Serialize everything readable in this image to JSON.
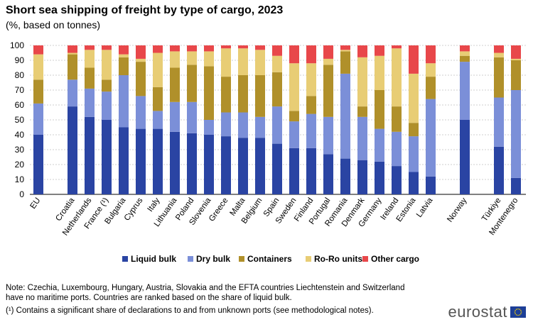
{
  "title": "Short sea shipping of freight by type of cargo, 2023",
  "subtitle": "(%, based on tonnes)",
  "chart_data": {
    "type": "bar",
    "stacked": true,
    "categories": [
      "EU",
      "Croatia",
      "Netherlands",
      "France (¹)",
      "Bulgaria",
      "Cyprus",
      "Italy",
      "Lithuania",
      "Poland",
      "Slovenia",
      "Greece",
      "Malta",
      "Belgium",
      "Spain",
      "Sweden",
      "Finland",
      "Portugal",
      "Romania",
      "Denmark",
      "Germany",
      "Ireland",
      "Estonia",
      "Latvia",
      "Norway",
      "Türkiye",
      "Montenegro"
    ],
    "series": [
      {
        "name": "Liquid bulk",
        "color": "#2a44a3",
        "values": [
          40,
          59,
          52,
          50,
          45,
          44,
          44,
          42,
          41,
          40,
          39,
          38,
          38,
          34,
          31,
          31,
          27,
          24,
          23,
          22,
          19,
          15,
          12,
          50,
          32,
          11
        ]
      },
      {
        "name": "Dry bulk",
        "color": "#7b8fd8",
        "values": [
          21,
          18,
          19,
          19,
          35,
          22,
          12,
          20,
          21,
          10,
          16,
          17,
          14,
          25,
          18,
          23,
          25,
          57,
          29,
          22,
          23,
          24,
          52,
          39,
          33,
          59
        ]
      },
      {
        "name": "Containers",
        "color": "#b0902a",
        "values": [
          16,
          17,
          14,
          8,
          12,
          23,
          16,
          23,
          25,
          36,
          24,
          25,
          28,
          23,
          7,
          12,
          35,
          15,
          7,
          26,
          17,
          9,
          15,
          4,
          27,
          20
        ]
      },
      {
        "name": "Ro-Ro units",
        "color": "#e8cd75",
        "values": [
          17,
          1,
          12,
          20,
          2,
          2,
          23,
          11,
          9,
          10,
          19,
          18,
          17,
          11,
          32,
          22,
          4,
          1,
          33,
          23,
          39,
          33,
          9,
          3,
          3,
          1
        ]
      },
      {
        "name": "Other cargo",
        "color": "#e8474a",
        "values": [
          6,
          5,
          3,
          3,
          6,
          9,
          5,
          4,
          4,
          4,
          2,
          2,
          3,
          7,
          12,
          12,
          9,
          3,
          8,
          7,
          2,
          19,
          12,
          4,
          5,
          9
        ]
      }
    ],
    "ylim": [
      0,
      100
    ],
    "yticks": [
      0,
      10,
      20,
      30,
      40,
      50,
      60,
      70,
      80,
      90,
      100
    ],
    "xlabel": "",
    "ylabel": "",
    "legend_position": "bottom"
  },
  "notes": {
    "line1": "Note: Czechia, Luxembourg, Hungary, Austria, Slovakia and the EFTA countries Liechtenstein and Switzerland",
    "line2": "have no maritime ports. Countries are ranked based on the share of liquid bulk.",
    "line3": "(¹) Contains a significant share of declarations to and from unknown  ports (see methodological notes)."
  },
  "logo": "eurostat"
}
